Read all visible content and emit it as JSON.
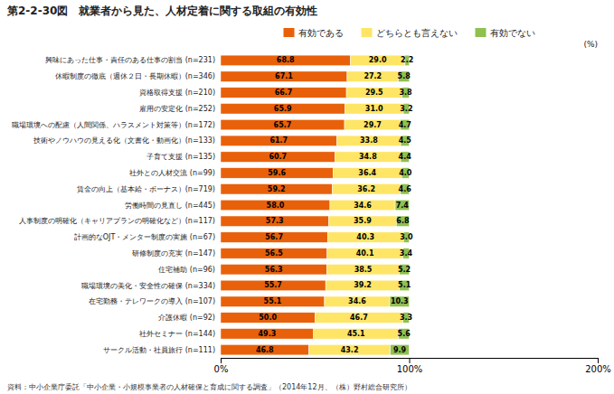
{
  "chart_data": {
    "type": "bar",
    "orientation": "horizontal",
    "stacked": true,
    "data_labels": true,
    "legend": "top",
    "grid": false,
    "title": "第2-2-30図　就業者から見た、人材定着に関する取組の有効性",
    "annotations": [
      "(%)",
      "資料：中小企業庁委託「中小企業・小規模事業者の人材確保と育成に関する調査」（2014年12月、（株）野村総合研究所）"
    ],
    "categories": [
      "興味にあった仕事・責任のある仕事の割当 (n=231)",
      "休暇制度の徹底（週休２日・長期休暇）(n=346)",
      "資格取得支援 (n=210)",
      "雇用の安定化 (n=252)",
      "職場環境への配慮（人間関係、ハラスメント対策等）(n=172)",
      "技術やノウハウの見える化（文書化・動画化）(n=133)",
      "子育て支援 (n=135)",
      "社外との人材交流 (n=99)",
      "賃金の向上（基本給・ボーナス）(n=719)",
      "労働時間の見直し (n=445)",
      "人事制度の明確化（キャリアプランの明確化など）(n=117)",
      "計画的なOJT・メンター制度の実施 (n=67)",
      "研修制度の充実 (n=147)",
      "住宅補助 (n=96)",
      "職場環境の美化・安全性の確保 (n=334)",
      "在宅勤務・テレワークの導入 (n=107)",
      "介護休暇 (n=92)",
      "社外セミナー (n=144)",
      "サークル活動・社員旅行 (n=111)"
    ],
    "series": [
      {
        "name": "有効である",
        "color": "#E8610A",
        "values": [
          68.8,
          67.1,
          66.7,
          65.9,
          65.7,
          61.7,
          60.7,
          59.6,
          59.2,
          58.0,
          57.3,
          56.7,
          56.5,
          56.3,
          55.7,
          55.1,
          50.0,
          49.3,
          46.8
        ],
        "value_labels": [
          "68.8",
          "67.1",
          "66.7",
          "65.9",
          "65.7",
          "61.7",
          "60.7",
          "59.6",
          "59.2",
          "58.0",
          "57.3",
          "56.7",
          "56.5",
          "56.3",
          "55.7",
          "55.1",
          "50.0",
          "49.3",
          "46.8"
        ]
      },
      {
        "name": "どちらとも言えない",
        "color": "#FFE566",
        "values": [
          29.0,
          27.2,
          29.5,
          31.0,
          29.7,
          33.8,
          34.8,
          36.4,
          36.2,
          34.6,
          35.9,
          40.3,
          40.1,
          38.5,
          39.2,
          34.6,
          46.7,
          45.1,
          43.2
        ],
        "value_labels": [
          "29.0",
          "27.2",
          "29.5",
          "31.0",
          "29.7",
          "33.8",
          "34.8",
          "36.4",
          "36.2",
          "34.6",
          "35.9",
          "40.3",
          "40.1",
          "38.5",
          "39.2",
          "34.6",
          "46.7",
          "45.1",
          "43.2"
        ]
      },
      {
        "name": "有効でない",
        "color": "#90C050",
        "values": [
          2.2,
          5.8,
          3.8,
          3.2,
          4.7,
          4.5,
          4.4,
          4.0,
          4.6,
          7.4,
          6.8,
          3.0,
          3.4,
          5.2,
          5.1,
          10.3,
          3.3,
          5.6,
          9.9
        ],
        "value_labels": [
          "2.2",
          "5.8",
          "3.8",
          "3.2",
          "4.7",
          "4.5",
          "4.4",
          "4.0",
          "4.6",
          "7.4",
          "6.8",
          "3.0",
          "3.4",
          "5.2",
          "5.1",
          "10.3",
          "3.3",
          "5.6",
          "9.9"
        ]
      }
    ],
    "xlim": [
      0,
      200
    ],
    "xticks": [
      {
        "value": 0,
        "label": "0%"
      },
      {
        "value": 100,
        "label": "100%"
      },
      {
        "value": 200,
        "label": "200%"
      }
    ]
  }
}
